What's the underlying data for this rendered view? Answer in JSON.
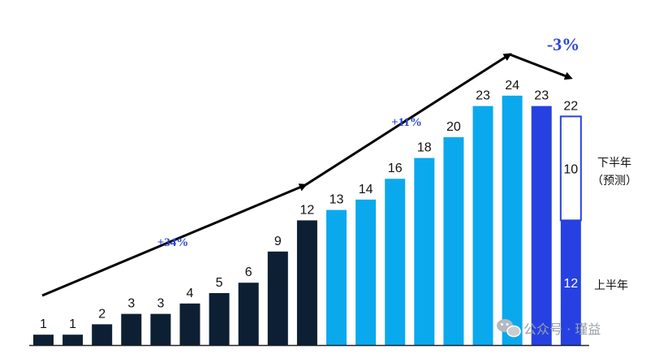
{
  "chart_data": {
    "type": "bar",
    "title": "",
    "xlabel": "",
    "ylabel": "",
    "ylim": [
      0,
      25
    ],
    "grid": false,
    "categories": [
      "",
      "",
      "",
      "",
      "",
      "",
      "",
      "",
      "",
      "",
      "",
      "",
      "",
      "",
      "",
      "",
      "",
      "",
      ""
    ],
    "values": [
      1,
      1,
      2,
      3,
      3,
      4,
      5,
      6,
      9,
      12,
      13,
      14,
      16,
      18,
      20,
      23,
      24,
      23,
      22
    ],
    "value_labels": [
      "1",
      "1",
      "2",
      "3",
      "3",
      "4",
      "5",
      "6",
      "9",
      "12",
      "13",
      "14",
      "16",
      "18",
      "20",
      "23",
      "24",
      "23",
      "22"
    ],
    "bar_color_groups": [
      {
        "color": "#0d1f33",
        "count": 10
      },
      {
        "color": "#0aa9ee",
        "count": 7
      },
      {
        "color": "#2641e2",
        "count": 1
      },
      {
        "color": "#2641e2",
        "count": 1
      }
    ],
    "last_bar_segments": [
      {
        "label": "上半年",
        "value": 12,
        "value_label": "12",
        "color": "#2641e2"
      },
      {
        "label": "下半年（预测）",
        "line1": "下半年",
        "line2": "（预测）",
        "value": 10,
        "value_label": "10",
        "color": "#ffffff",
        "outline": "#2641e2"
      }
    ],
    "annotations": [
      {
        "text": "+34%",
        "kind": "growth-arrow",
        "from_bar": 0,
        "to_bar": 9
      },
      {
        "text": "+11%",
        "kind": "growth-arrow",
        "from_bar": 9,
        "to_bar": 16
      },
      {
        "text": "-3%",
        "kind": "decline-arrow",
        "from_bar": 16,
        "to_bar": 18
      }
    ]
  },
  "watermark": {
    "icon": "wechat-icon",
    "text": "公众号 · 瑾益"
  }
}
